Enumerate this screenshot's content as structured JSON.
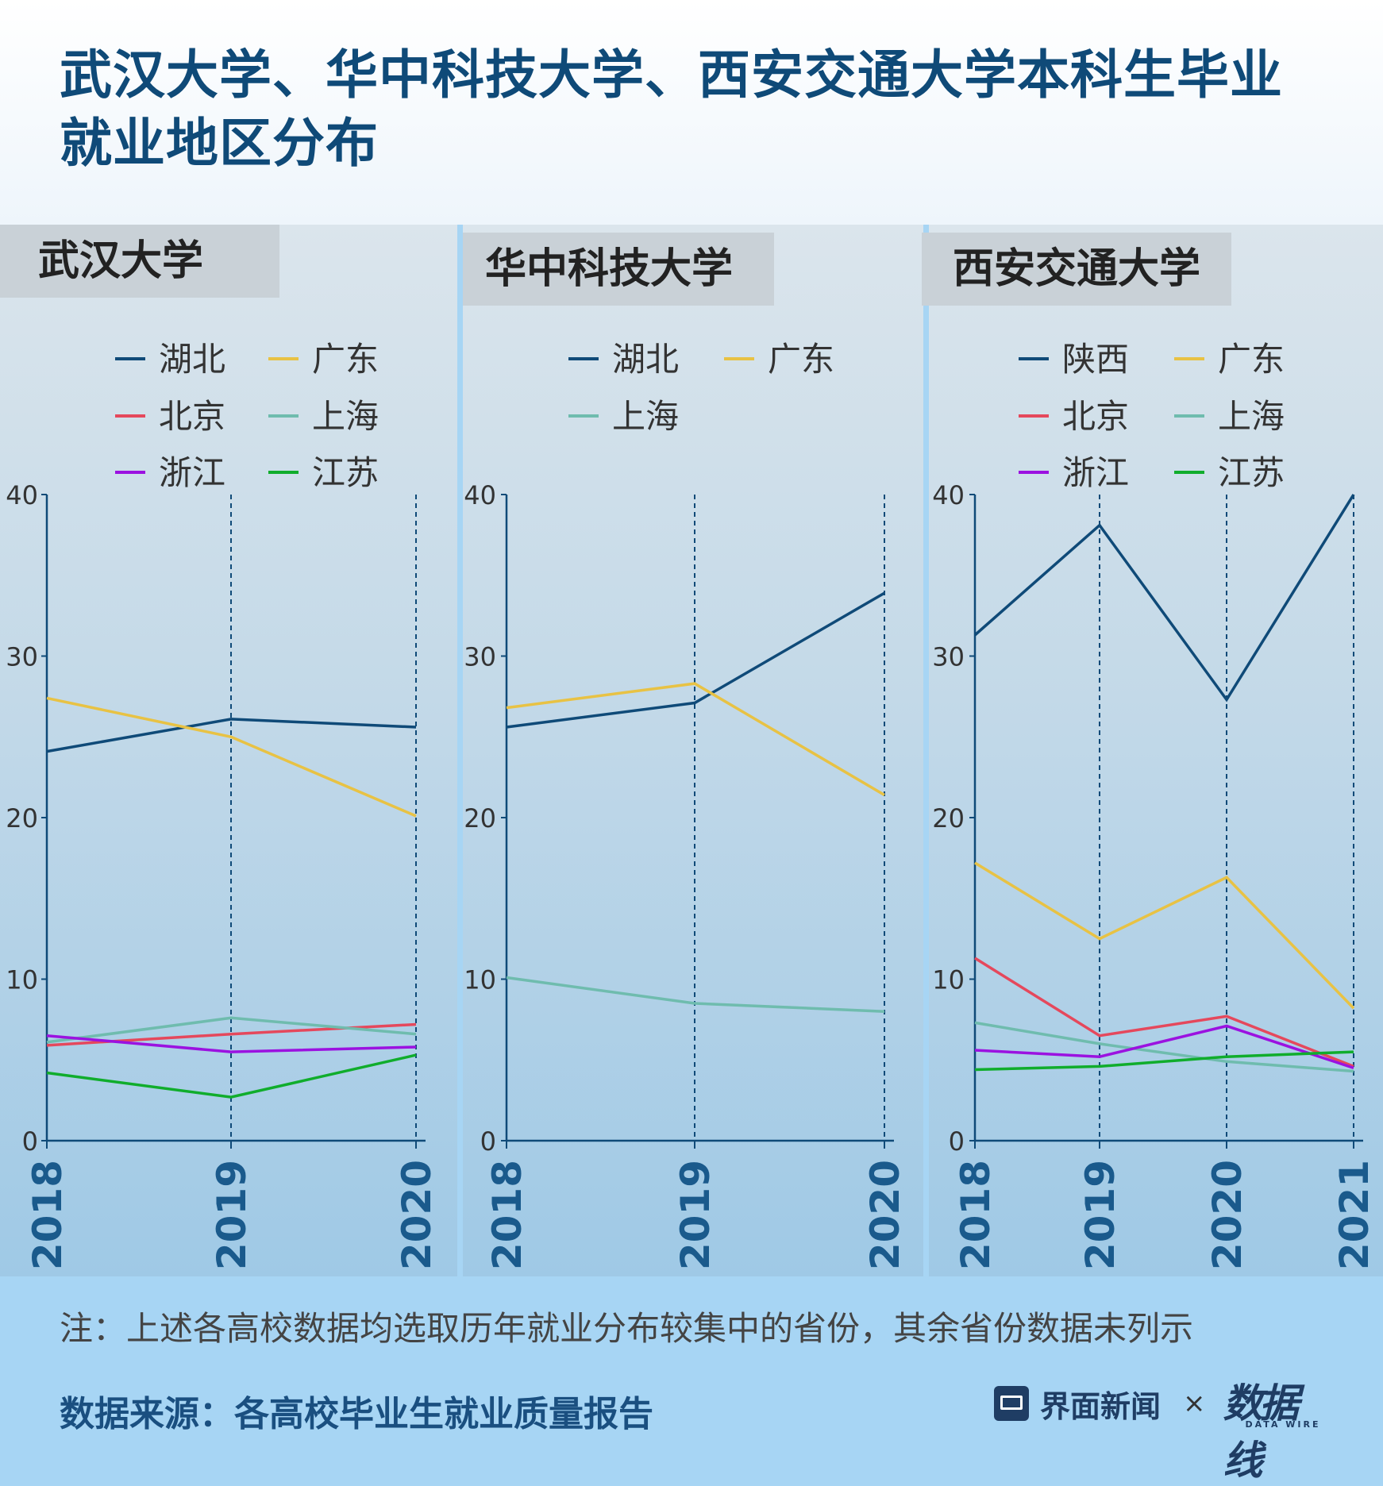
{
  "title": "武汉大学、华中科技大学、西安交通大学本科生毕业就业地区分布",
  "note": "注：上述各高校数据均选取历年就业分布较集中的省份，其余省份数据未列示",
  "source": "数据来源：各高校毕业生就业质量报告",
  "brand": {
    "name": "界面新闻",
    "separator": "×",
    "logo": "数据线",
    "logo_sub": "DATA WIRE"
  },
  "colors": {
    "湖北": "#0f4a78",
    "陕西": "#0f4a78",
    "广东": "#e8c244",
    "北京": "#e5485c",
    "上海": "#6fbcae",
    "浙江": "#9b12e0",
    "江苏": "#10ad2c"
  },
  "chart_data": [
    {
      "type": "line",
      "title": "武汉大学",
      "x": [
        "2018",
        "2019",
        "2020"
      ],
      "ylim": [
        0,
        40
      ],
      "yticks": [
        0,
        10,
        20,
        30,
        40
      ],
      "series": [
        {
          "name": "湖北",
          "values": [
            24.1,
            26.1,
            25.6
          ]
        },
        {
          "name": "广东",
          "values": [
            27.4,
            25.0,
            20.1
          ]
        },
        {
          "name": "北京",
          "values": [
            5.9,
            6.6,
            7.2
          ]
        },
        {
          "name": "上海",
          "values": [
            6.1,
            7.6,
            6.6
          ]
        },
        {
          "name": "浙江",
          "values": [
            6.5,
            5.5,
            5.8
          ]
        },
        {
          "name": "江苏",
          "values": [
            4.2,
            2.7,
            5.3
          ]
        }
      ]
    },
    {
      "type": "line",
      "title": "华中科技大学",
      "x": [
        "2018",
        "2019",
        "2020"
      ],
      "ylim": [
        0,
        40
      ],
      "yticks": [
        0,
        10,
        20,
        30,
        40
      ],
      "series": [
        {
          "name": "湖北",
          "values": [
            25.6,
            27.1,
            33.9
          ]
        },
        {
          "name": "广东",
          "values": [
            26.8,
            28.3,
            21.4
          ]
        },
        {
          "name": "上海",
          "values": [
            10.1,
            8.5,
            8.0
          ]
        }
      ]
    },
    {
      "type": "line",
      "title": "西安交通大学",
      "x": [
        "2018",
        "2019",
        "2020",
        "2021"
      ],
      "ylim": [
        0,
        40
      ],
      "yticks": [
        0,
        10,
        20,
        30,
        40
      ],
      "series": [
        {
          "name": "陕西",
          "values": [
            31.3,
            38.1,
            27.3,
            40.0
          ]
        },
        {
          "name": "广东",
          "values": [
            17.2,
            12.5,
            16.3,
            8.2
          ]
        },
        {
          "name": "北京",
          "values": [
            11.3,
            6.5,
            7.7,
            4.6
          ]
        },
        {
          "name": "上海",
          "values": [
            7.3,
            6.0,
            4.9,
            4.3
          ]
        },
        {
          "name": "浙江",
          "values": [
            5.6,
            5.2,
            7.1,
            4.5
          ]
        },
        {
          "name": "江苏",
          "values": [
            4.4,
            4.6,
            5.2,
            5.5
          ]
        }
      ]
    }
  ]
}
